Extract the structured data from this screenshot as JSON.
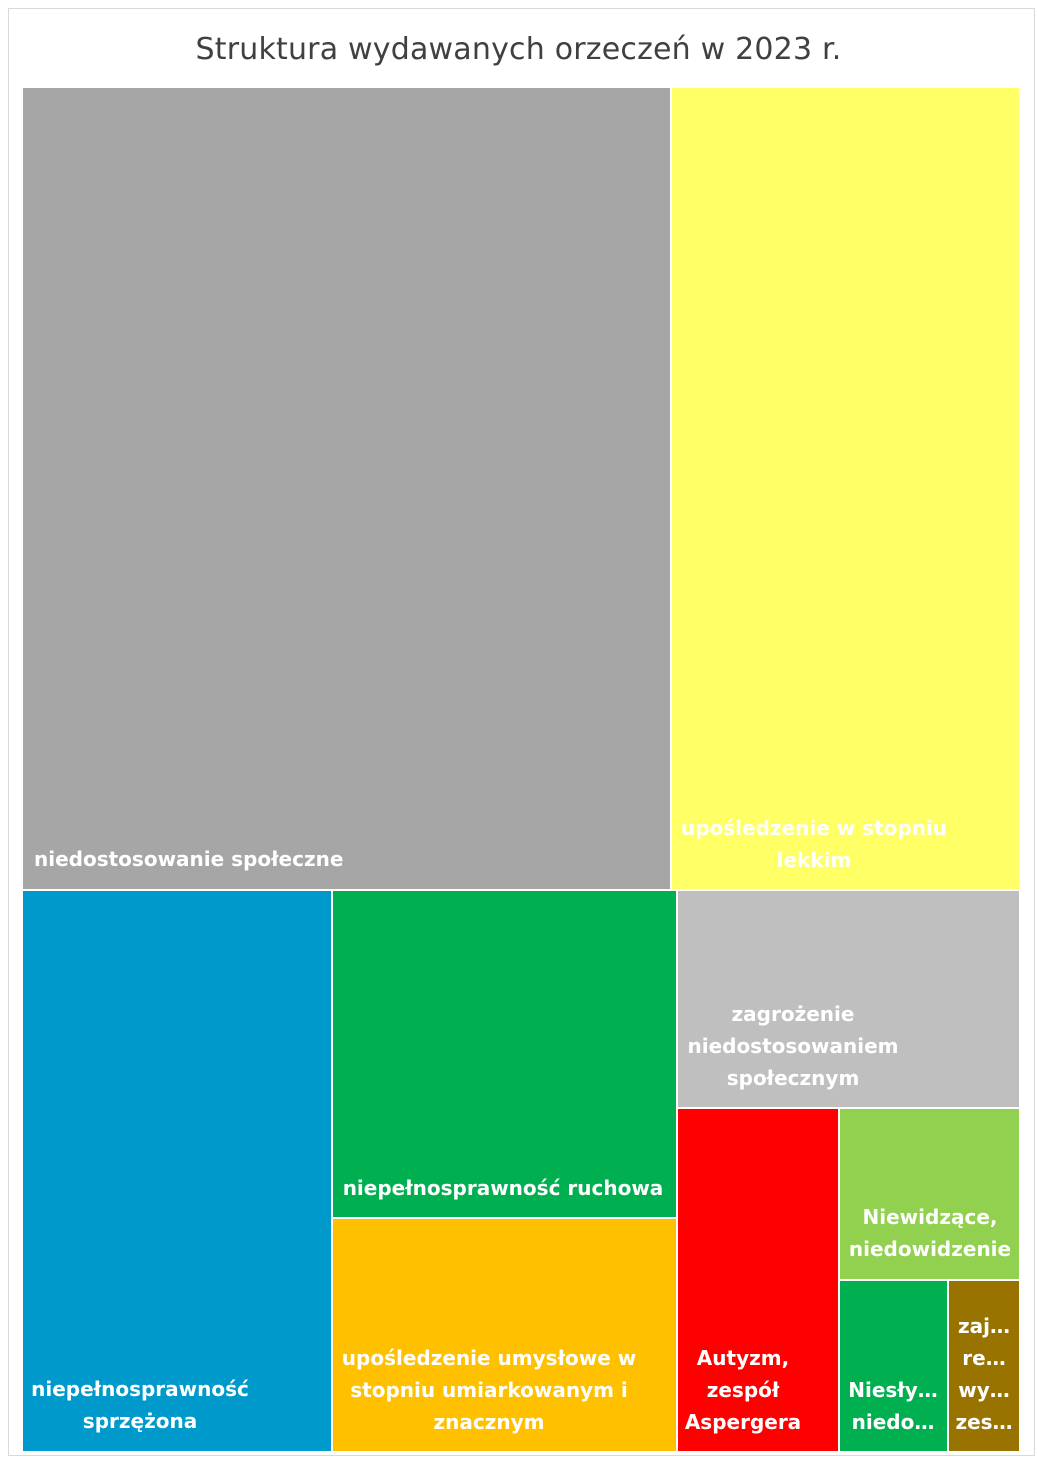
{
  "chart_data": {
    "type": "treemap",
    "title": "Struktura wydawanych orzeczeń w 2023 r.",
    "items": [
      {
        "label": [
          "niedostosowanie społeczne"
        ],
        "value": 520,
        "color": "#A6A6A6"
      },
      {
        "label": [
          "upośledzenie w stopniu",
          "lekkim"
        ],
        "value": 280,
        "color": "#FFFF66"
      },
      {
        "label": [
          "niepełnosprawność",
          "sprzężona"
        ],
        "value": 210,
        "color": "#0099CC"
      },
      {
        "label": [
          "niepełnosprawność ruchowa"
        ],
        "value": 110,
        "color": "#00B050"
      },
      {
        "label": [
          "upośledzenie umysłowe w",
          "stopniu umiarkowanym i",
          "znacznym"
        ],
        "value": 80,
        "color": "#FFC000"
      },
      {
        "label": [
          "zagrożenie",
          "niedostosowaniem",
          "społecznym"
        ],
        "value": 75,
        "color": "#BFBFBF"
      },
      {
        "label": [
          "Autyzm,",
          "zespół",
          "Aspergera"
        ],
        "value": 55,
        "color": "#FF0000"
      },
      {
        "label": [
          "Niewidzące,",
          "niedowidzenie"
        ],
        "value": 28,
        "color": "#92D050"
      },
      {
        "label": [
          "Niesły…",
          "niedo…"
        ],
        "value": 18,
        "color": "#00B050"
      },
      {
        "label": [
          "zaj…",
          "re…",
          "wy…",
          "zes…"
        ],
        "value": 12,
        "color": "#997300"
      }
    ]
  }
}
